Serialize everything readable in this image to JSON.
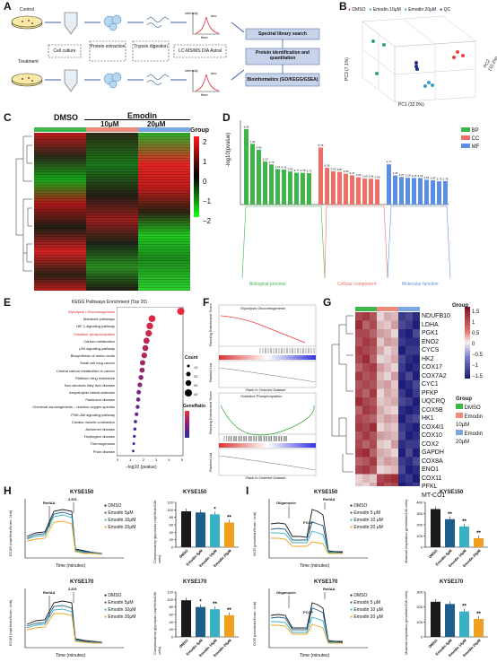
{
  "panels": {
    "A": "A",
    "B": "B",
    "C": "C",
    "D": "D",
    "E": "E",
    "F": "F",
    "G": "G",
    "H": "H",
    "I": "I"
  },
  "panel_a": {
    "control": "Control",
    "treatment": "Treatment",
    "steps": [
      "Cell culture",
      "Protein extraction",
      "Trypsin digestion",
      "LC-MS/MS DIA Astral"
    ],
    "results": [
      "Spectral library search",
      "Protein identification and quantitation",
      "Bioinformatics (GO/KEGG/GSEA)"
    ],
    "axis_rt": "time",
    "axis_int": "intensity",
    "auc": "auc"
  },
  "panel_b": {
    "legend": [
      "DMSO",
      "Emodin 10μM",
      "Emodin 20μM",
      "QC"
    ],
    "colors": {
      "DMSO": "#e8433a",
      "Emodin 10μM": "#3aa0c8",
      "Emodin 20μM": "#2eaa6a",
      "QC": "#1d2f8a"
    },
    "pc1": "PC1 (32.0%)",
    "pc2": "PC2 (10.2%)",
    "pc3": "PC3 (7.1%)"
  },
  "panel_c": {
    "dmso": "DMSO",
    "emodin": "Emodin",
    "d10": "10μM",
    "d20": "20μM",
    "group": "Group",
    "scale": [
      "2",
      "1",
      "0",
      "−1",
      "−2"
    ],
    "group_colors": [
      "#3fb64a",
      "#f08a7a",
      "#7ba7e0"
    ]
  },
  "panel_d": {
    "ylabel": "-log10(pvalue)",
    "legend": [
      "BP",
      "CC",
      "MF"
    ],
    "colors": {
      "BP": "#3fb64a",
      "CC": "#f06f64",
      "MF": "#5b8ee6"
    },
    "sections": [
      "Biological process",
      "Cellular component",
      "Molecular function"
    ]
  },
  "panel_e": {
    "title": "KEGG Pathways Enrichment (Top 20)",
    "pathways": [
      "Glycolysis / Gluconeogenesis",
      "Metabolic pathways",
      "HIF-1 signaling pathway",
      "Oxidative phosphorylation",
      "Carbon metabolism",
      "p53 signaling pathway",
      "Biosynthesis of amino acids",
      "Small cell lung cancer",
      "Central carbon metabolism in cancer",
      "Platinum drug resistance",
      "Non-alcoholic fatty liver disease",
      "Amyotrophic lateral sclerosis",
      "Parkinson disease",
      "Chemical carcinogenesis – reactive oxygen species",
      "PI3K-Akt signaling pathway",
      "Cardiac muscle contraction",
      "Alzheimer disease",
      "Huntington disease",
      "Thermogenesis",
      "Prion disease"
    ],
    "xlabel": "−log10 (pvalue)",
    "xticks": [
      "0",
      "1",
      "2",
      "3",
      "4",
      "5"
    ],
    "count": "Count",
    "count_vals": [
      "10",
      "20",
      "30",
      "40"
    ],
    "generatio": "GeneRatio"
  },
  "panel_f": {
    "top_title": "Glycolysis Gluconeogenesis",
    "bottom_title": "Oxidative Phosphorylation",
    "res": "Running Enrichment Score",
    "rank": "Ranked List",
    "xaxis": "Rank in Ordered Dataset"
  },
  "panel_g": {
    "genes": [
      "NDUFB10",
      "LDHA",
      "PGK1",
      "ENO2",
      "CYCS",
      "HK2",
      "COX17",
      "COX7A2",
      "CYC1",
      "PFKP",
      "UQCRQ",
      "COX5B",
      "HK1",
      "COX4I1",
      "COX10",
      "COX2",
      "GAPDH",
      "COX8A",
      "ENO1",
      "COX11",
      "PFKL",
      "MT-CO1"
    ],
    "group": "Group",
    "scale": [
      "1.5",
      "1",
      "0.5",
      "0",
      "−0.5",
      "−1",
      "−1.5"
    ],
    "legend": [
      "DMSO",
      "Emodin 10μM",
      "Emodin 20μM"
    ],
    "legend_colors": [
      "#3fb64a",
      "#f08a7a",
      "#7ba7e0"
    ]
  },
  "panel_h": {
    "cell_top": "KYSE150",
    "cell_bottom": "KYSE170",
    "ylabel": "ECAR (mpH/min/Norm. Unit)",
    "xlabel": "Time (minutes)",
    "inj1": "Rot/AA",
    "inj2": "2-DG",
    "legend": [
      "DMSO",
      "Emodin 5μM",
      "Emodin 10μM",
      "Emodin 20μM"
    ],
    "bar_ylabel": "Compensatory glycolysis (mpH/min/10k cells)",
    "bar_cats": [
      "DMSO",
      "Emodin 5μM",
      "Emodin 10μM",
      "Emodin 20μM"
    ],
    "colors": [
      "#1a1a1a",
      "#1d5f8a",
      "#3ab0c4",
      "#f0a020"
    ]
  },
  "panel_i": {
    "cell_top": "KYSE150",
    "cell_bottom": "KYSE170",
    "ylabel": "OCR (pmol/min/Norm. Unit)",
    "xlabel": "Time (minutes)",
    "inj1": "Oligomycin",
    "inj2": "FCCP",
    "inj3": "Rot/AA",
    "legend": [
      "DMSO",
      "Emodin 5 μM",
      "Emodin 10 μM",
      "Emodin 20 μM"
    ],
    "bar_ylabel": "Maximal respiration (pmol/min/10k cells)",
    "bar_cats": [
      "DMSO",
      "Emodin 5μM",
      "Emodin 10μM",
      "Emodin 20μM"
    ]
  },
  "chart_data": [
    {
      "type": "bar",
      "id": "H-KYSE150",
      "categories": [
        "DMSO",
        "Emodin 5μM",
        "Emodin 10μM",
        "Emodin 20μM"
      ],
      "values": [
        96,
        93,
        88,
        66
      ],
      "ylim": [
        0,
        120
      ],
      "yticks": [
        "0",
        "20",
        "40",
        "60",
        "80",
        "100",
        "120"
      ],
      "signif": [
        "",
        "",
        "*",
        "**"
      ]
    },
    {
      "type": "bar",
      "id": "H-KYSE170",
      "categories": [
        "DMSO",
        "Emodin 5μM",
        "Emodin 10μM",
        "Emodin 20μM"
      ],
      "values": [
        98,
        80,
        74,
        58
      ],
      "ylim": [
        0,
        120
      ],
      "yticks": [
        "0",
        "20",
        "40",
        "60",
        "80",
        "100",
        "120"
      ],
      "signif": [
        "",
        "*",
        "**",
        "**"
      ]
    },
    {
      "type": "bar",
      "id": "I-KYSE150",
      "categories": [
        "DMSO",
        "Emodin 5μM",
        "Emodin 10μM",
        "Emodin 20μM"
      ],
      "values": [
        340,
        250,
        185,
        80
      ],
      "ylim": [
        0,
        400
      ],
      "yticks": [
        "0",
        "100",
        "200",
        "300",
        "400"
      ],
      "signif": [
        "",
        "**",
        "**",
        "**"
      ]
    },
    {
      "type": "bar",
      "id": "I-KYSE170",
      "categories": [
        "DMSO",
        "Emodin 5μM",
        "Emodin 10μM",
        "Emodin 20μM"
      ],
      "values": [
        235,
        220,
        170,
        120
      ],
      "ylim": [
        0,
        300
      ],
      "yticks": [
        "0",
        "100",
        "200",
        "300"
      ],
      "signif": [
        "",
        "",
        "**",
        "**"
      ]
    },
    {
      "type": "bar",
      "id": "D-GO",
      "values": [
        8.95,
        7.2,
        6.5,
        5.1,
        4.76,
        4.21,
        4.15,
        3.92,
        3.77,
        3.76,
        3.72,
        6.76,
        4.35,
        3.93,
        3.87,
        3.66,
        3.47,
        3.24,
        3.09,
        3.06,
        2.99,
        4.77,
        3.45,
        3.27,
        3.18,
        3.15,
        3.15,
        2.94,
        2.87,
        2.75,
        2.78
      ],
      "groups": [
        "BP",
        "BP",
        "BP",
        "BP",
        "BP",
        "BP",
        "BP",
        "BP",
        "BP",
        "BP",
        "BP",
        "CC",
        "CC",
        "CC",
        "CC",
        "CC",
        "CC",
        "CC",
        "CC",
        "CC",
        "CC",
        "MF",
        "MF",
        "MF",
        "MF",
        "MF",
        "MF",
        "MF",
        "MF",
        "MF",
        "MF"
      ],
      "ylim": [
        0,
        10
      ]
    },
    {
      "type": "scatter",
      "id": "E-KEGG",
      "x": [
        5.8,
        3.2,
        3.0,
        2.9,
        2.7,
        2.6,
        2.5,
        2.35,
        2.3,
        2.2,
        2.1,
        2.0,
        1.95,
        1.9,
        1.8,
        1.7,
        1.65,
        1.6,
        1.55,
        1.5
      ],
      "xlim": [
        0,
        6
      ]
    }
  ]
}
